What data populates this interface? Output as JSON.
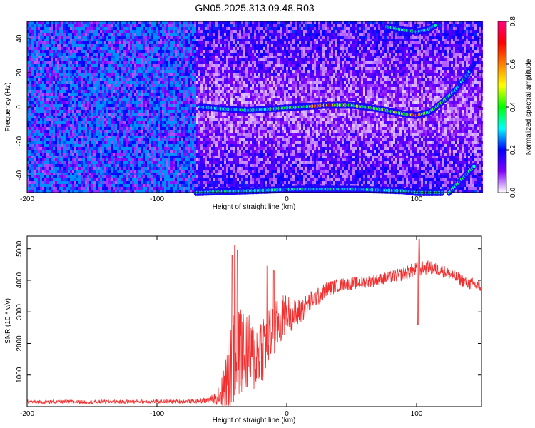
{
  "title": "GN05.2025.313.09.48.R03",
  "chart_data": [
    {
      "type": "heatmap",
      "title": "GN05.2025.313.09.48.R03",
      "xlabel": "Height of straight line (km)",
      "ylabel": "Frequency (Hz)",
      "xlim": [
        -200,
        150
      ],
      "ylim": [
        -50,
        50
      ],
      "xticks": [
        "-200",
        "-100",
        "0",
        "100"
      ],
      "yticks": [
        "40",
        "20",
        "0",
        "-20",
        "-40"
      ],
      "xtick_values": [
        -200,
        -100,
        0,
        100
      ],
      "ytick_values": [
        40,
        20,
        0,
        -20,
        -40
      ],
      "colorbar": {
        "label": "Normalized spectral amplitude",
        "range": [
          0.0,
          0.8
        ],
        "ticks": [
          "0.8",
          "0.6",
          "0.4",
          "0.2",
          "0.0"
        ],
        "tick_values": [
          0.8,
          0.6,
          0.4,
          0.2,
          0.0
        ],
        "colors": [
          "#ffffff",
          "#8000ff",
          "#0000ff",
          "#00ffff",
          "#00ff00",
          "#ffff00",
          "#ff8000",
          "#ff0000",
          "#ff0080"
        ]
      },
      "ridge": {
        "description": "main spectral ridge frequency (Hz) vs height (km)",
        "x": [
          -67,
          -50,
          -30,
          -10,
          10,
          30,
          50,
          70,
          90,
          100,
          110,
          120,
          130,
          140,
          145
        ],
        "y": [
          0,
          -1,
          -2,
          -1,
          0,
          1,
          1,
          -1,
          -4,
          -5,
          -3,
          3,
          10,
          20,
          26
        ],
        "peak_amplitudes": [
          0.35,
          0.4,
          0.45,
          0.5,
          0.5,
          0.8,
          0.55,
          0.5,
          0.6,
          0.8,
          0.5,
          0.45,
          0.4,
          0.35,
          0.3
        ]
      },
      "aliased_ridges": [
        {
          "x": [
            -70,
            -30,
            10,
            50,
            90,
            100,
            110,
            120
          ],
          "y": [
            -50,
            -49,
            -48,
            -48,
            -49,
            -50,
            -50,
            -50
          ]
        },
        {
          "x": [
            77,
            90,
            100,
            108,
            115
          ],
          "y": [
            47,
            45,
            44,
            45,
            48
          ]
        },
        {
          "x": [
            125,
            135,
            145
          ],
          "y": [
            -50,
            -42,
            -34
          ]
        }
      ]
    },
    {
      "type": "line",
      "xlabel": "Height of straight line (km)",
      "ylabel": "SNR (10 * v/v)",
      "xlim": [
        -200,
        150
      ],
      "ylim": [
        0,
        5400
      ],
      "xticks": [
        "-200",
        "-100",
        "0",
        "100"
      ],
      "yticks": [
        "5000",
        "4000",
        "3000",
        "2000",
        "1000"
      ],
      "xtick_values": [
        -200,
        -100,
        0,
        100
      ],
      "ytick_values": [
        5000,
        4000,
        3000,
        2000,
        1000
      ],
      "series": [
        {
          "name": "SNR",
          "color": "#f03030",
          "x": [
            -200,
            -150,
            -100,
            -70,
            -60,
            -55,
            -50,
            -45,
            -40,
            -35,
            -30,
            -25,
            -20,
            -15,
            -10,
            -5,
            0,
            5,
            10,
            15,
            20,
            25,
            30,
            40,
            50,
            60,
            70,
            80,
            90,
            100,
            110,
            120,
            130,
            140,
            150
          ],
          "y": [
            150,
            150,
            160,
            170,
            200,
            280,
            500,
            900,
            1500,
            1800,
            1700,
            1500,
            1900,
            2100,
            2400,
            2700,
            3000,
            2900,
            3000,
            3200,
            3400,
            3500,
            3700,
            3850,
            3900,
            3950,
            4000,
            4100,
            4200,
            4350,
            4400,
            4300,
            4100,
            3900,
            3800
          ],
          "noise": [
            60,
            60,
            60,
            60,
            100,
            180,
            600,
            1500,
            1500,
            1400,
            1300,
            1100,
            1200,
            1000,
            900,
            800,
            600,
            500,
            450,
            350,
            300,
            280,
            250,
            220,
            200,
            200,
            200,
            200,
            220,
            250,
            220,
            200,
            200,
            200,
            200
          ],
          "spikes": [
            {
              "x": -40,
              "y": 5100
            },
            {
              "x": -38,
              "y": 4950
            },
            {
              "x": -42,
              "y": 4800
            },
            {
              "x": -15,
              "y": 4450
            },
            {
              "x": -10,
              "y": 4300
            },
            {
              "x": 102,
              "y": 5300
            },
            {
              "x": 101,
              "y": 2600
            }
          ]
        }
      ]
    }
  ]
}
